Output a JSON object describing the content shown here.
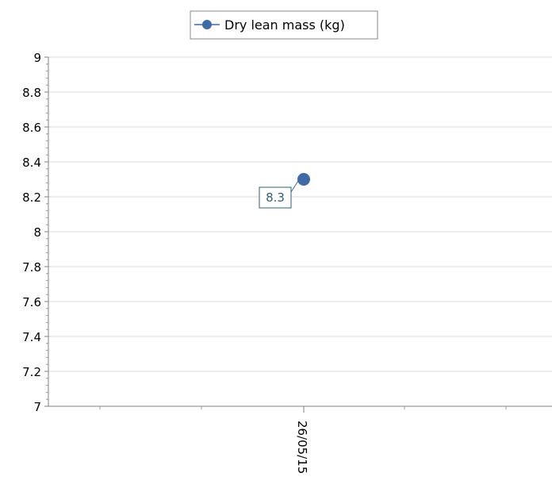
{
  "chart_data": {
    "type": "line",
    "title": "",
    "xlabel": "",
    "ylabel": "",
    "legend": {
      "position": "top-center",
      "entries": [
        "Dry lean mass (kg)"
      ]
    },
    "grid": {
      "y": true,
      "x": false
    },
    "ylim": [
      7,
      9
    ],
    "yticks": [
      7,
      7.2,
      7.4,
      7.6,
      7.8,
      8,
      8.2,
      8.4,
      8.6,
      8.8,
      9
    ],
    "ytick_labels": [
      "7",
      "7.2",
      "7.4",
      "7.6",
      "7.8",
      "8",
      "8.2",
      "8.4",
      "8.6",
      "8.8",
      "9"
    ],
    "categories": [
      "26/05/15"
    ],
    "series": [
      {
        "name": "Dry lean mass (kg)",
        "color": "#3f6aa8",
        "values": [
          8.3
        ],
        "data_labels": [
          "8.3"
        ]
      }
    ]
  }
}
